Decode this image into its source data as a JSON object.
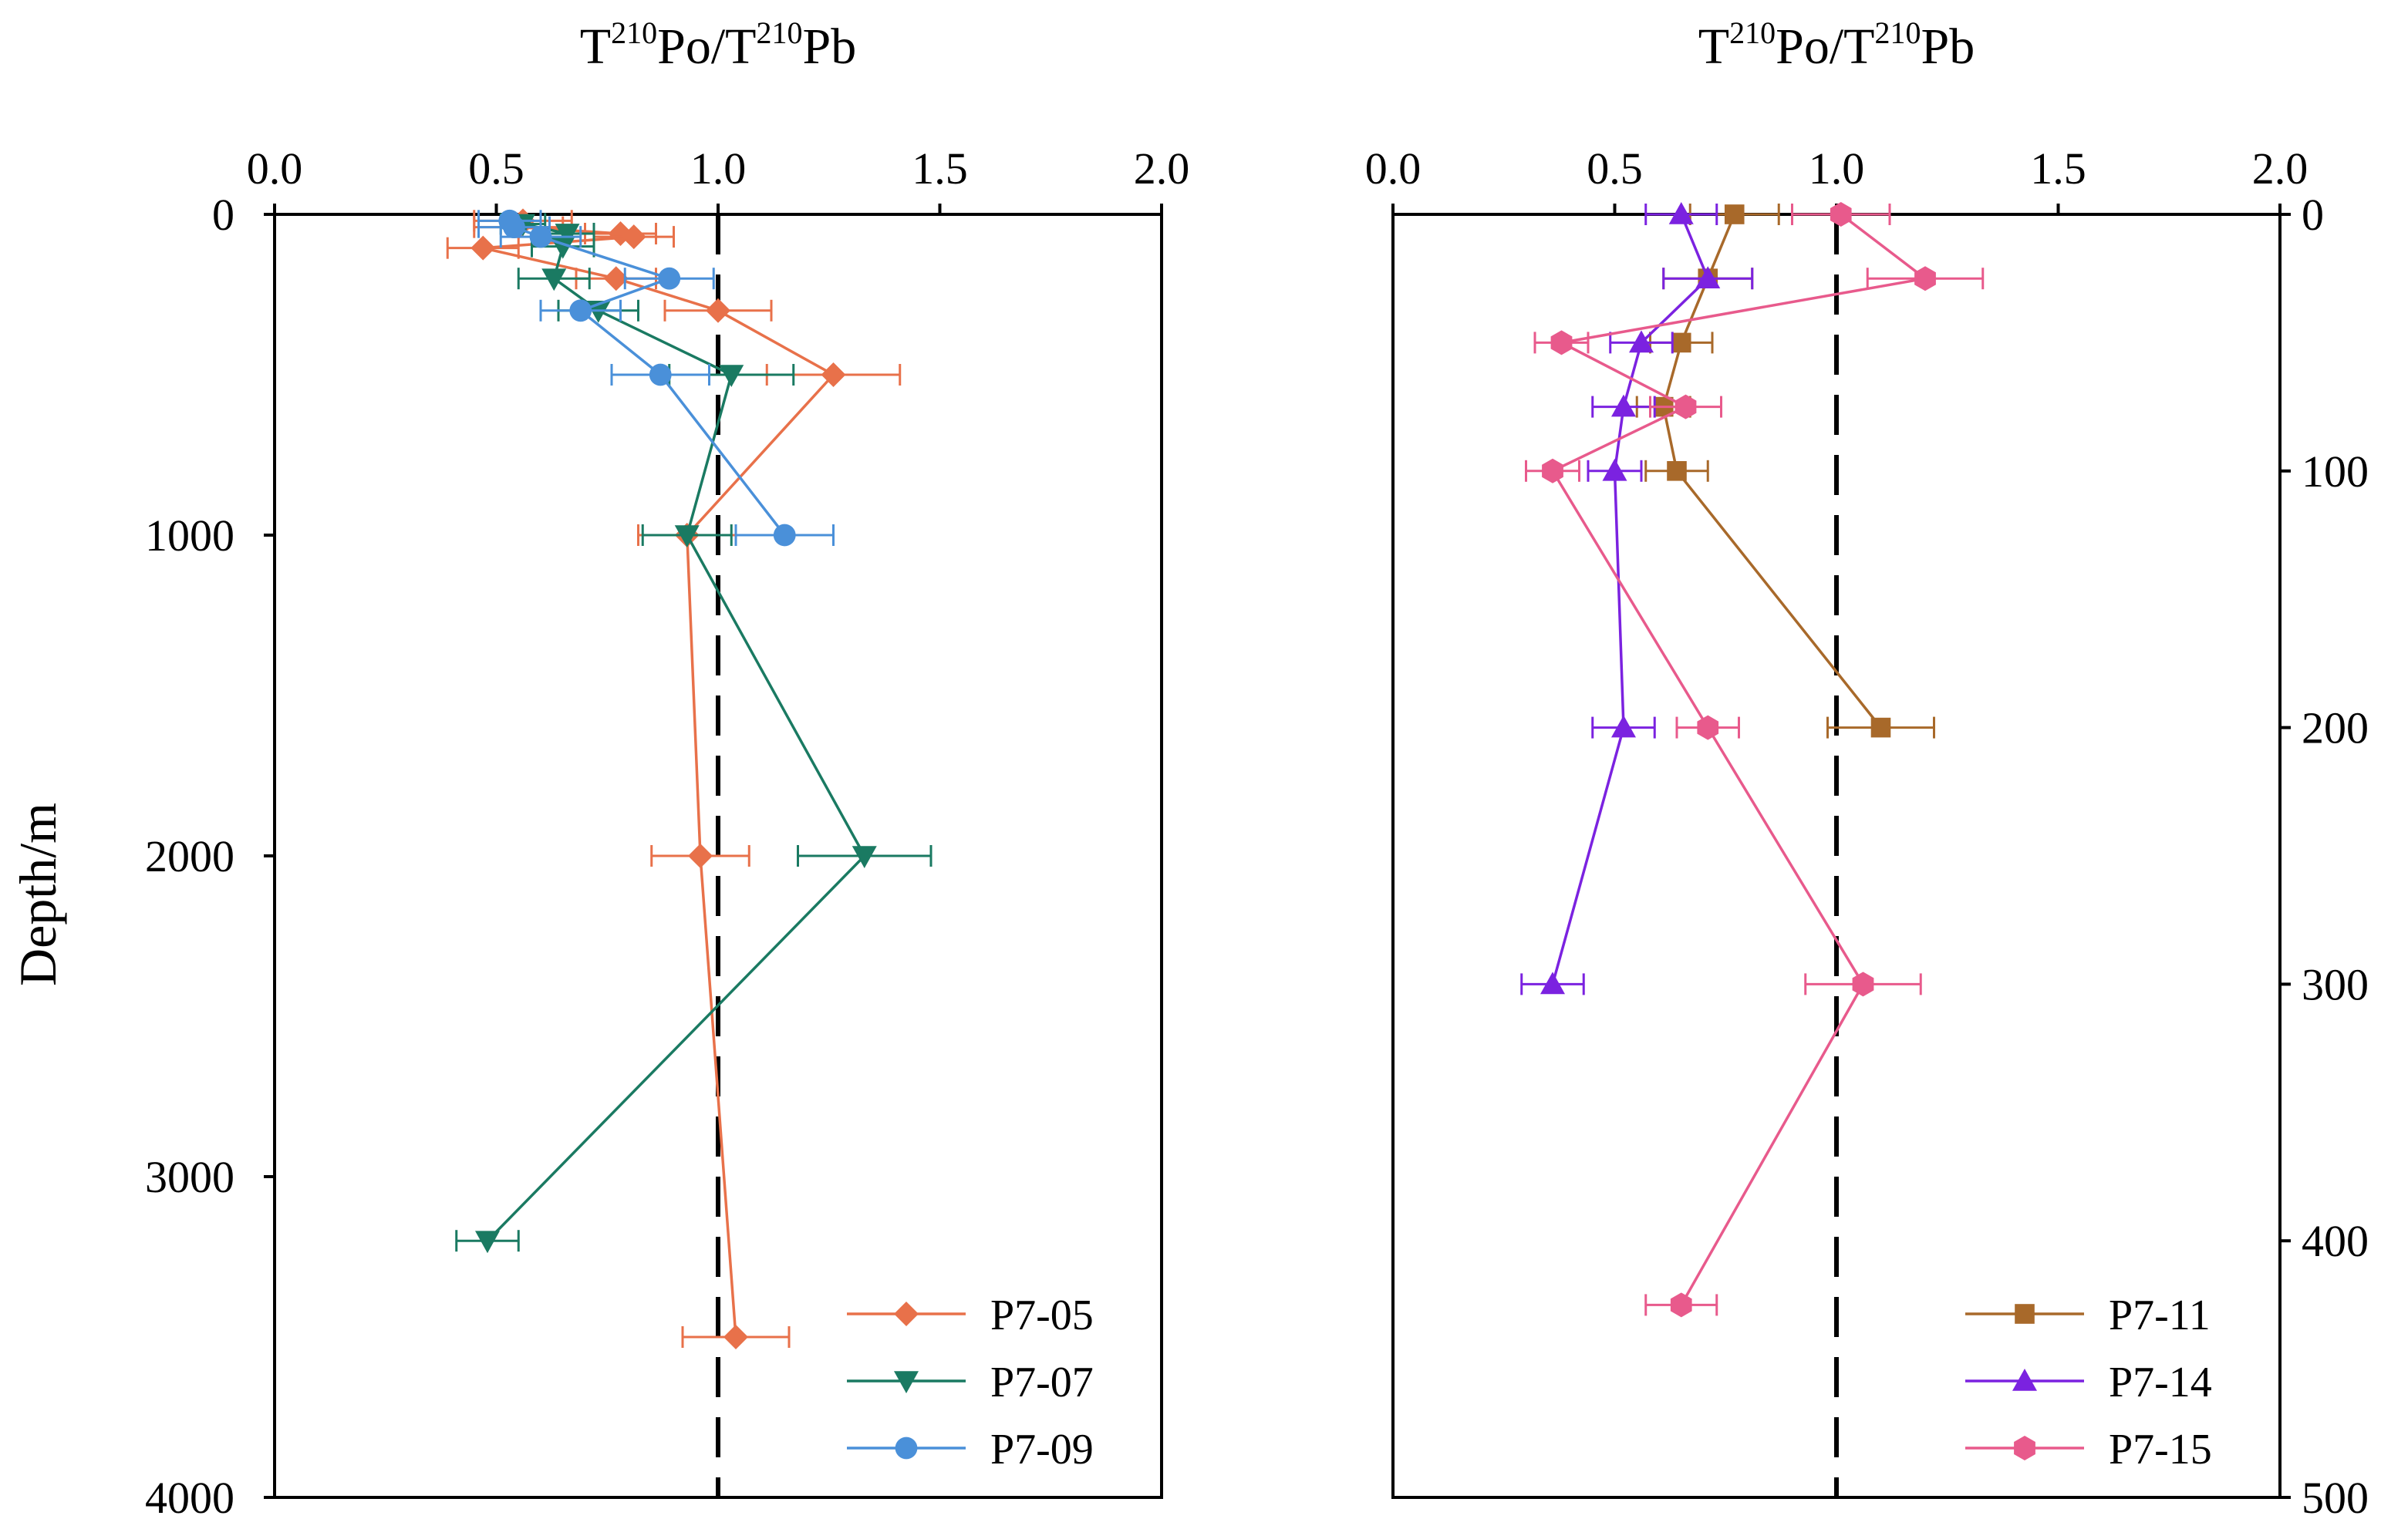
{
  "chart_data": [
    {
      "id": "left",
      "type": "scatter",
      "title": {
        "prefix": "T",
        "sup1": "210",
        "mid": "Po/T",
        "sup2": "210",
        "suffix": "Pb"
      },
      "ylabel": "Depth/m",
      "xlim": [
        0,
        2
      ],
      "ylim": [
        0,
        4000
      ],
      "x_ticks": [
        "0.0",
        "0.5",
        "1.0",
        "1.5",
        "2.0"
      ],
      "y_ticks": [
        "0",
        "1000",
        "2000",
        "3000",
        "4000"
      ],
      "y_tick_values": [
        0,
        1000,
        2000,
        3000,
        4000
      ],
      "reference_x": 1.0,
      "legend_position": "bottom-right",
      "series": [
        {
          "name": "P7-05",
          "color": "#e8714a",
          "marker": "diamond",
          "points": [
            {
              "x": 0.56,
              "y": 20,
              "err": 0.11
            },
            {
              "x": 0.55,
              "y": 40,
              "err": 0.1
            },
            {
              "x": 0.78,
              "y": 60,
              "err": 0.08
            },
            {
              "x": 0.81,
              "y": 70,
              "err": 0.09
            },
            {
              "x": 0.47,
              "y": 105,
              "err": 0.08
            },
            {
              "x": 0.77,
              "y": 200,
              "err": 0.09
            },
            {
              "x": 1.0,
              "y": 300,
              "err": 0.12
            },
            {
              "x": 1.26,
              "y": 500,
              "err": 0.15
            },
            {
              "x": 0.93,
              "y": 1000,
              "err": 0.11
            },
            {
              "x": 0.96,
              "y": 2000,
              "err": 0.11
            },
            {
              "x": 1.04,
              "y": 3500,
              "err": 0.12
            }
          ]
        },
        {
          "name": "P7-07",
          "color": "#1a7a62",
          "marker": "triangle-down",
          "points": [
            {
              "x": 0.56,
              "y": 30,
              "err": 0.05
            },
            {
              "x": 0.66,
              "y": 60,
              "err": 0.06
            },
            {
              "x": 0.65,
              "y": 100,
              "err": 0.07
            },
            {
              "x": 0.63,
              "y": 200,
              "err": 0.08
            },
            {
              "x": 0.73,
              "y": 300,
              "err": 0.09
            },
            {
              "x": 1.03,
              "y": 500,
              "err": 0.14
            },
            {
              "x": 0.93,
              "y": 1000,
              "err": 0.1
            },
            {
              "x": 1.33,
              "y": 2000,
              "err": 0.15
            },
            {
              "x": 0.48,
              "y": 3200,
              "err": 0.07
            }
          ]
        },
        {
          "name": "P7-09",
          "color": "#4a90d9",
          "marker": "circle",
          "points": [
            {
              "x": 0.53,
              "y": 20,
              "err": 0.07
            },
            {
              "x": 0.54,
              "y": 40,
              "err": 0.08
            },
            {
              "x": 0.6,
              "y": 70,
              "err": 0.09
            },
            {
              "x": 0.89,
              "y": 200,
              "err": 0.1
            },
            {
              "x": 0.69,
              "y": 300,
              "err": 0.09
            },
            {
              "x": 0.87,
              "y": 500,
              "err": 0.11
            },
            {
              "x": 1.15,
              "y": 1000,
              "err": 0.11
            }
          ]
        }
      ]
    },
    {
      "id": "right",
      "type": "scatter",
      "title": {
        "prefix": "T",
        "sup1": "210",
        "mid": "Po/T",
        "sup2": "210",
        "suffix": "Pb"
      },
      "xlim": [
        0,
        2
      ],
      "ylim": [
        0,
        500
      ],
      "x_ticks": [
        "0.0",
        "0.5",
        "1.0",
        "1.5",
        "2.0"
      ],
      "y_ticks": [
        "0",
        "100",
        "200",
        "300",
        "400",
        "500"
      ],
      "y_tick_values": [
        0,
        100,
        200,
        300,
        400,
        500
      ],
      "reference_x": 1.0,
      "legend_position": "bottom-right",
      "series": [
        {
          "name": "P7-11",
          "color": "#a8692a",
          "marker": "square",
          "points": [
            {
              "x": 0.77,
              "y": 0,
              "err": 0.1
            },
            {
              "x": 0.71,
              "y": 25,
              "err": 0.1
            },
            {
              "x": 0.65,
              "y": 50,
              "err": 0.07
            },
            {
              "x": 0.61,
              "y": 75,
              "err": 0.06
            },
            {
              "x": 0.64,
              "y": 100,
              "err": 0.07
            },
            {
              "x": 1.1,
              "y": 200,
              "err": 0.12
            }
          ]
        },
        {
          "name": "P7-14",
          "color": "#7b22e0",
          "marker": "triangle-up",
          "points": [
            {
              "x": 0.65,
              "y": 0,
              "err": 0.08
            },
            {
              "x": 0.71,
              "y": 25,
              "err": 0.1
            },
            {
              "x": 0.56,
              "y": 50,
              "err": 0.07
            },
            {
              "x": 0.52,
              "y": 75,
              "err": 0.07
            },
            {
              "x": 0.5,
              "y": 100,
              "err": 0.06
            },
            {
              "x": 0.52,
              "y": 200,
              "err": 0.07
            },
            {
              "x": 0.36,
              "y": 300,
              "err": 0.07
            }
          ]
        },
        {
          "name": "P7-15",
          "color": "#e85a8c",
          "marker": "hexagon",
          "points": [
            {
              "x": 1.01,
              "y": 0,
              "err": 0.11
            },
            {
              "x": 1.2,
              "y": 25,
              "err": 0.13
            },
            {
              "x": 0.38,
              "y": 50,
              "err": 0.06
            },
            {
              "x": 0.66,
              "y": 75,
              "err": 0.08
            },
            {
              "x": 0.36,
              "y": 100,
              "err": 0.06
            },
            {
              "x": 0.71,
              "y": 200,
              "err": 0.07
            },
            {
              "x": 1.06,
              "y": 300,
              "err": 0.13
            },
            {
              "x": 0.65,
              "y": 425,
              "err": 0.08
            }
          ]
        }
      ]
    }
  ]
}
